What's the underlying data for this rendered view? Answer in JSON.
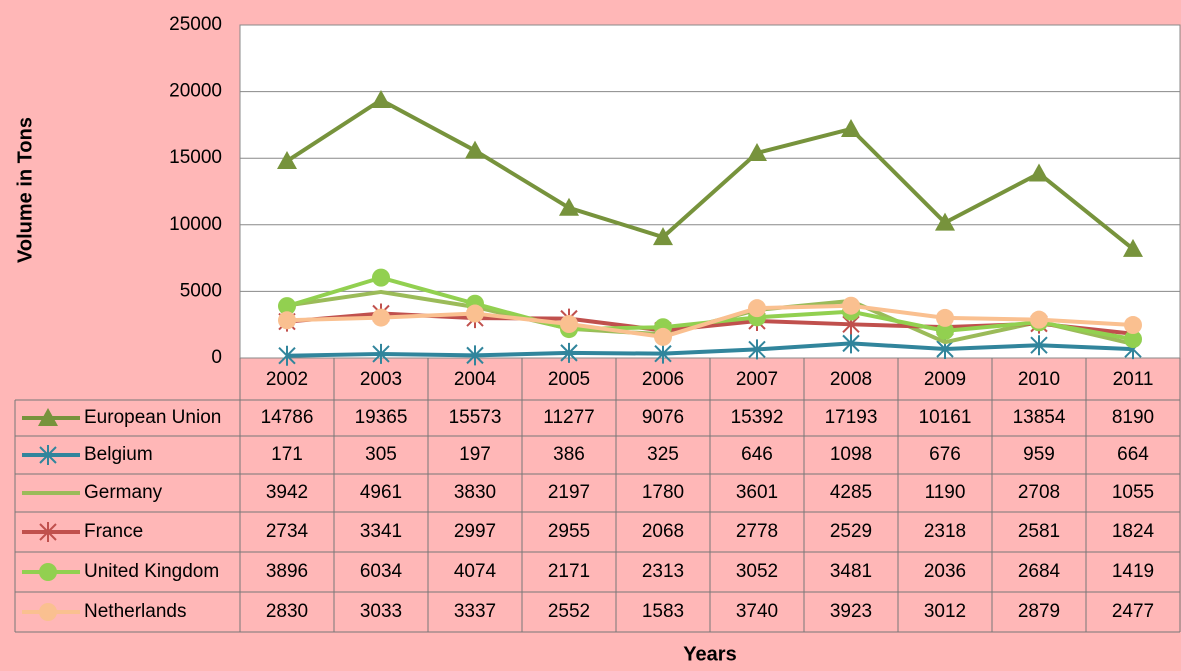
{
  "chart_data": {
    "type": "line",
    "y_label": "Volume in Tons",
    "x_label": "Years",
    "categories": [
      "2002",
      "2003",
      "2004",
      "2005",
      "2006",
      "2007",
      "2008",
      "2009",
      "2010",
      "2011"
    ],
    "series": [
      {
        "name": "European Union",
        "color": "#77933c",
        "marker": "triangle",
        "values": [
          14786,
          19365,
          15573,
          11277,
          9076,
          15392,
          17193,
          10161,
          13854,
          8190
        ]
      },
      {
        "name": "Belgium",
        "color": "#31859c",
        "marker": "star",
        "values": [
          171,
          305,
          197,
          386,
          325,
          646,
          1098,
          676,
          959,
          664
        ]
      },
      {
        "name": "Germany",
        "color": "#9bbb59",
        "marker": "none",
        "values": [
          3942,
          4961,
          3830,
          2197,
          1780,
          3601,
          4285,
          1190,
          2708,
          1055
        ]
      },
      {
        "name": "France",
        "color": "#c0504d",
        "marker": "star",
        "values": [
          2734,
          3341,
          2997,
          2955,
          2068,
          2778,
          2529,
          2318,
          2581,
          1824
        ]
      },
      {
        "name": "United Kingdom",
        "color": "#92d050",
        "marker": "circle",
        "values": [
          3896,
          6034,
          4074,
          2171,
          2313,
          3052,
          3481,
          2036,
          2684,
          1419
        ]
      },
      {
        "name": "Netherlands",
        "color": "#fac090",
        "marker": "circle",
        "values": [
          2830,
          3033,
          3337,
          2552,
          1583,
          3740,
          3923,
          3012,
          2879,
          2477
        ]
      }
    ],
    "ylim": [
      0,
      25000
    ],
    "yticks": [
      0,
      5000,
      10000,
      15000,
      20000,
      25000
    ],
    "grid": true
  }
}
